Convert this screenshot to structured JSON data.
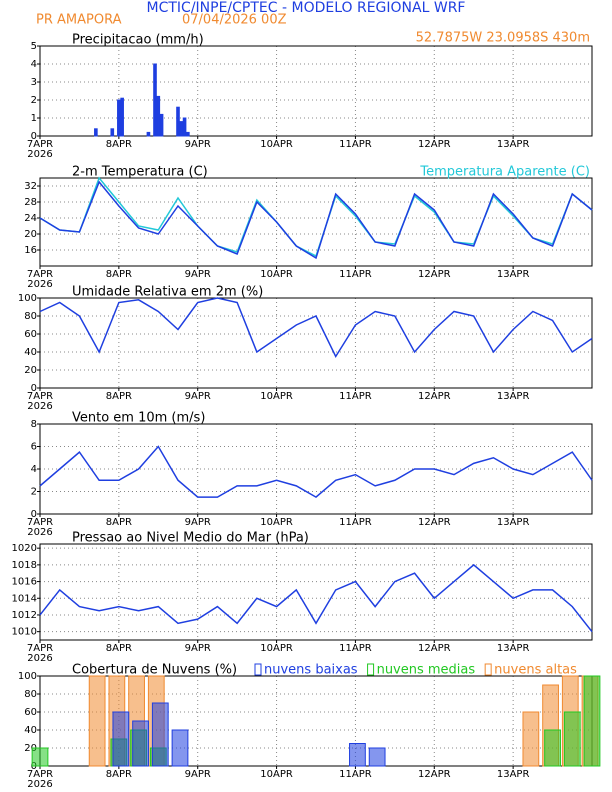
{
  "header": {
    "title": "MCTIC/INPE/CPTEC - MODELO REGIONAL WRF",
    "station": "PR AMAPORA",
    "run": "07/04/2026 00Z",
    "location": "52.7875W 23.0958S 430m"
  },
  "chart_data": [
    {
      "type": "bar",
      "title": "Precipitacao (mm/h)",
      "color": "#1f3fe0",
      "x": [
        17,
        22,
        24,
        25,
        33,
        35,
        36,
        37,
        42,
        43,
        44,
        45
      ],
      "values": [
        0.4,
        0.4,
        2.0,
        2.1,
        0.2,
        4.0,
        2.2,
        1.2,
        1.6,
        0.8,
        1.0,
        0.2
      ],
      "xlim": [
        0,
        168
      ],
      "xticks": [
        {
          "value": 0,
          "label": "7APR"
        },
        {
          "value": 24,
          "label": "8APR"
        },
        {
          "value": 48,
          "label": "9APR"
        },
        {
          "value": 72,
          "label": "10APR"
        },
        {
          "value": 96,
          "label": "11APR"
        },
        {
          "value": 120,
          "label": "12APR"
        },
        {
          "value": 144,
          "label": "13APR"
        }
      ],
      "x_year": "2026",
      "ylim": [
        0,
        5
      ],
      "yticks": [
        0,
        1,
        2,
        3,
        4,
        5
      ],
      "grid": true
    },
    {
      "type": "line",
      "title": "2-m Temperatura (C)",
      "x": [
        0,
        6,
        12,
        18,
        24,
        30,
        36,
        42,
        48,
        54,
        60,
        66,
        72,
        78,
        84,
        90,
        96,
        102,
        108,
        114,
        120,
        126,
        132,
        138,
        144,
        150,
        156,
        162,
        168
      ],
      "series": [
        {
          "name": "Temperatura Aparente (C)",
          "color": "#22c8d8",
          "values": [
            24,
            21,
            20.5,
            34,
            28,
            22,
            21,
            29,
            22,
            17,
            15.5,
            28.5,
            23,
            17,
            14.5,
            29.5,
            24.5,
            18,
            17.5,
            29.5,
            25.5,
            18,
            17.5,
            29.5,
            24.5,
            19,
            17.5,
            30,
            26
          ]
        },
        {
          "color": "#1f3fe0",
          "values": [
            24,
            21,
            20.5,
            33,
            27,
            21.5,
            20,
            27,
            22,
            17,
            15,
            28,
            23,
            17,
            14,
            30,
            25,
            18,
            17,
            30,
            26,
            18,
            17,
            30,
            25,
            19,
            17,
            30,
            26
          ]
        }
      ],
      "xlim": [
        0,
        168
      ],
      "xticks": [
        {
          "value": 0,
          "label": "7APR"
        },
        {
          "value": 24,
          "label": "8APR"
        },
        {
          "value": 48,
          "label": "9APR"
        },
        {
          "value": 72,
          "label": "10APR"
        },
        {
          "value": 96,
          "label": "11APR"
        },
        {
          "value": 120,
          "label": "12APR"
        },
        {
          "value": 144,
          "label": "13APR"
        }
      ],
      "x_year": "2026",
      "ylim": [
        12,
        34
      ],
      "yticks": [
        16,
        20,
        24,
        28,
        32
      ],
      "grid": true
    },
    {
      "type": "line",
      "title": "Umidade Relativa em 2m (%)",
      "x": [
        0,
        6,
        12,
        18,
        24,
        30,
        36,
        42,
        48,
        54,
        60,
        66,
        72,
        78,
        84,
        90,
        96,
        102,
        108,
        114,
        120,
        126,
        132,
        138,
        144,
        150,
        156,
        162,
        168
      ],
      "series": [
        {
          "color": "#1f3fe0",
          "values": [
            85,
            95,
            80,
            40,
            95,
            98,
            85,
            65,
            95,
            100,
            95,
            40,
            55,
            70,
            80,
            35,
            70,
            85,
            80,
            40,
            65,
            85,
            80,
            40,
            65,
            85,
            75,
            40,
            55
          ]
        }
      ],
      "xlim": [
        0,
        168
      ],
      "xticks": [
        {
          "value": 0,
          "label": "7APR"
        },
        {
          "value": 24,
          "label": "8APR"
        },
        {
          "value": 48,
          "label": "9APR"
        },
        {
          "value": 72,
          "label": "10APR"
        },
        {
          "value": 96,
          "label": "11APR"
        },
        {
          "value": 120,
          "label": "12APR"
        },
        {
          "value": 144,
          "label": "13APR"
        }
      ],
      "x_year": "2026",
      "ylim": [
        0,
        100
      ],
      "yticks": [
        0,
        20,
        40,
        60,
        80,
        100
      ],
      "grid": true
    },
    {
      "type": "line",
      "title": "Vento em 10m (m/s)",
      "x": [
        0,
        6,
        12,
        18,
        24,
        30,
        36,
        42,
        48,
        54,
        60,
        66,
        72,
        78,
        84,
        90,
        96,
        102,
        108,
        114,
        120,
        126,
        132,
        138,
        144,
        150,
        156,
        162,
        168
      ],
      "series": [
        {
          "color": "#1f3fe0",
          "values": [
            2.5,
            4,
            5.5,
            3,
            3,
            4,
            6,
            3,
            1.5,
            1.5,
            2.5,
            2.5,
            3,
            2.5,
            1.5,
            3,
            3.5,
            2.5,
            3,
            4,
            4,
            3.5,
            4.5,
            5,
            4,
            3.5,
            4.5,
            5.5,
            3
          ]
        }
      ],
      "xlim": [
        0,
        168
      ],
      "xticks": [
        {
          "value": 0,
          "label": "7APR"
        },
        {
          "value": 24,
          "label": "8APR"
        },
        {
          "value": 48,
          "label": "9APR"
        },
        {
          "value": 72,
          "label": "10APR"
        },
        {
          "value": 96,
          "label": "11APR"
        },
        {
          "value": 120,
          "label": "12APR"
        },
        {
          "value": 144,
          "label": "13APR"
        }
      ],
      "x_year": "2026",
      "ylim": [
        0,
        8
      ],
      "yticks": [
        0,
        2,
        4,
        6,
        8
      ],
      "grid": true
    },
    {
      "type": "line",
      "title": "Pressao ao Nivel Medio do Mar (hPa)",
      "x": [
        0,
        6,
        12,
        18,
        24,
        30,
        36,
        42,
        48,
        54,
        60,
        66,
        72,
        78,
        84,
        90,
        96,
        102,
        108,
        114,
        120,
        126,
        132,
        138,
        144,
        150,
        156,
        162,
        168
      ],
      "series": [
        {
          "color": "#1f3fe0",
          "values": [
            1012,
            1015,
            1013,
            1012.5,
            1013,
            1012.5,
            1013,
            1011,
            1011.5,
            1013,
            1011,
            1014,
            1013,
            1015,
            1011,
            1015,
            1016,
            1013,
            1016,
            1017,
            1014,
            1016,
            1018,
            1016,
            1014,
            1015,
            1015,
            1013,
            1010
          ]
        }
      ],
      "xlim": [
        0,
        168
      ],
      "xticks": [
        {
          "value": 0,
          "label": "7APR"
        },
        {
          "value": 24,
          "label": "8APR"
        },
        {
          "value": 48,
          "label": "9APR"
        },
        {
          "value": 72,
          "label": "10APR"
        },
        {
          "value": 96,
          "label": "11APR"
        },
        {
          "value": 120,
          "label": "12APR"
        },
        {
          "value": 144,
          "label": "13APR"
        }
      ],
      "x_year": "2026",
      "ylim": [
        1009,
        1020.5
      ],
      "yticks": [
        1010,
        1012,
        1014,
        1016,
        1018,
        1020
      ],
      "grid": true
    },
    {
      "type": "bar",
      "title": "Cobertura de Nuvens (%)",
      "x": [
        0,
        6,
        12,
        18,
        24,
        30,
        36,
        42,
        48,
        54,
        60,
        66,
        72,
        78,
        84,
        90,
        96,
        102,
        108,
        114,
        120,
        126,
        132,
        138,
        144,
        150,
        156,
        162,
        168
      ],
      "series": [
        {
          "name": "nuvens altas",
          "color": "#f08a30",
          "values": [
            0,
            0,
            0,
            100,
            100,
            100,
            100,
            0,
            0,
            0,
            0,
            0,
            0,
            0,
            0,
            0,
            0,
            0,
            0,
            0,
            0,
            0,
            0,
            0,
            0,
            60,
            90,
            100,
            100
          ]
        },
        {
          "name": "nuvens medias",
          "color": "#22c822",
          "values": [
            20,
            0,
            0,
            0,
            30,
            40,
            20,
            0,
            0,
            0,
            0,
            0,
            0,
            0,
            0,
            0,
            0,
            0,
            0,
            0,
            0,
            0,
            0,
            0,
            0,
            0,
            40,
            60,
            100
          ]
        },
        {
          "name": "nuvens baixas",
          "color": "#1f3fe0",
          "values": [
            0,
            0,
            0,
            0,
            60,
            50,
            70,
            40,
            0,
            0,
            0,
            0,
            0,
            0,
            0,
            0,
            25,
            20,
            0,
            0,
            0,
            0,
            0,
            0,
            0,
            0,
            0,
            0,
            0
          ]
        }
      ],
      "xlim": [
        0,
        168
      ],
      "xticks": [
        {
          "value": 0,
          "label": "7APR"
        },
        {
          "value": 24,
          "label": "8APR"
        },
        {
          "value": 48,
          "label": "9APR"
        },
        {
          "value": 72,
          "label": "10APR"
        },
        {
          "value": 96,
          "label": "11APR"
        },
        {
          "value": 120,
          "label": "12APR"
        },
        {
          "value": 144,
          "label": "13APR"
        }
      ],
      "x_year": "2026",
      "ylim": [
        0,
        100
      ],
      "yticks": [
        0,
        20,
        40,
        60,
        80,
        100
      ],
      "grid": true
    }
  ]
}
